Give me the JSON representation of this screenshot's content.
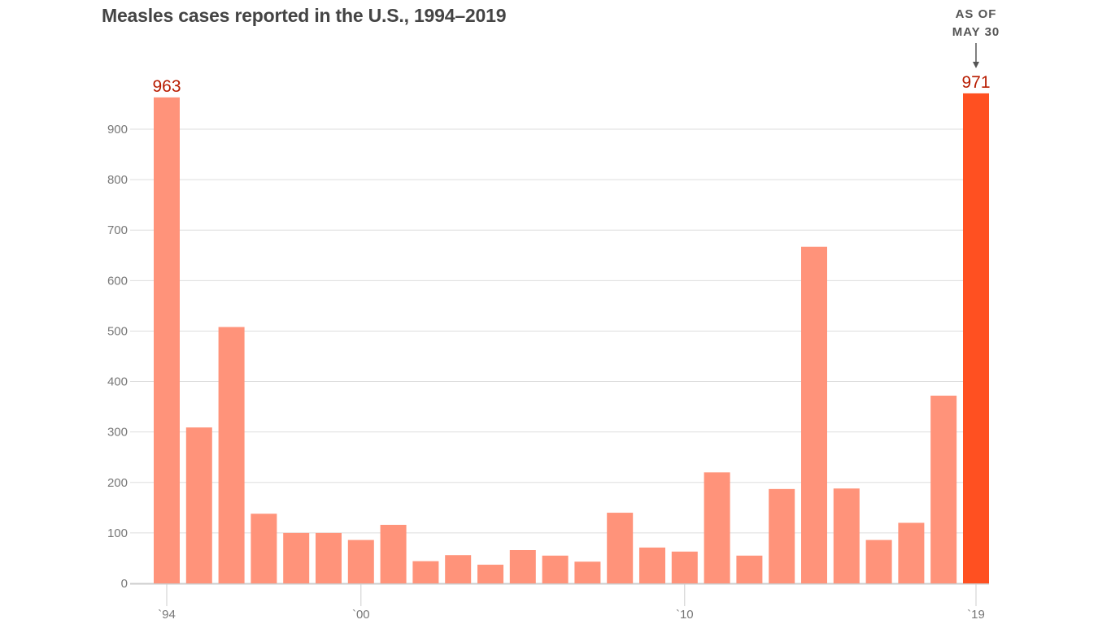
{
  "chart_data": {
    "type": "bar",
    "title": "Measles cases reported in the U.S., 1994–2019",
    "xlabel": "",
    "ylabel": "",
    "categories": [
      "1994",
      "1995",
      "1996",
      "1997",
      "1998",
      "1999",
      "2000",
      "2001",
      "2002",
      "2003",
      "2004",
      "2005",
      "2006",
      "2007",
      "2008",
      "2009",
      "2010",
      "2011",
      "2012",
      "2013",
      "2014",
      "2015",
      "2016",
      "2017",
      "2018",
      "2019"
    ],
    "values": [
      963,
      309,
      508,
      138,
      100,
      100,
      86,
      116,
      44,
      56,
      37,
      66,
      55,
      43,
      140,
      71,
      63,
      220,
      55,
      187,
      667,
      188,
      86,
      120,
      372,
      971
    ],
    "ylim": [
      0,
      1000
    ],
    "yticks": [
      0,
      100,
      200,
      300,
      400,
      500,
      600,
      700,
      800,
      900
    ],
    "xticks": [
      {
        "category": "1994",
        "label": "`94"
      },
      {
        "category": "2000",
        "label": "`00"
      },
      {
        "category": "2010",
        "label": "`10"
      },
      {
        "category": "2019",
        "label": "`19"
      }
    ],
    "data_labels": [
      {
        "category": "1994",
        "label": "963"
      },
      {
        "category": "2019",
        "label": "971"
      }
    ],
    "annotation": {
      "category": "2019",
      "lines": [
        "AS OF",
        "MAY 30"
      ]
    },
    "grid": true,
    "colors": {
      "bar": "#ff937a",
      "highlight": "#ff5021",
      "label": "#b81c00",
      "grid": "#dddddd",
      "text": "#777777"
    },
    "highlight_category": "2019"
  }
}
